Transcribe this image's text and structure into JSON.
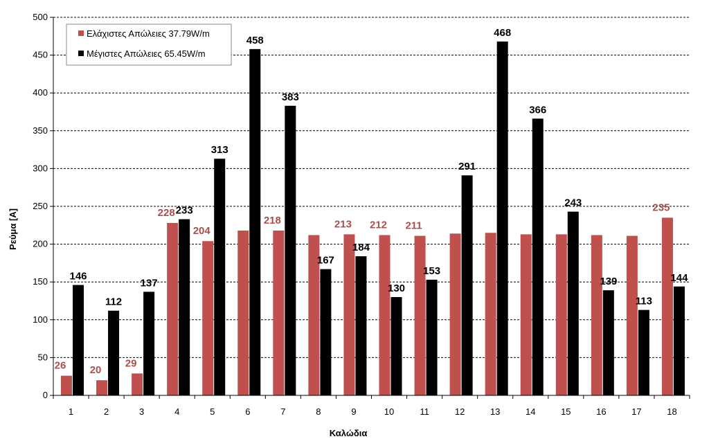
{
  "chart_data": {
    "type": "bar",
    "xlabel": "Καλώδια",
    "ylabel": "Ρεύμα [A]",
    "ylim": [
      0,
      500
    ],
    "yticks": [
      0,
      50,
      100,
      150,
      200,
      250,
      300,
      350,
      400,
      450,
      500
    ],
    "grid": "horizontal-dashed",
    "legend_position": "top-left",
    "categories": [
      "1",
      "2",
      "3",
      "4",
      "5",
      "6",
      "7",
      "8",
      "9",
      "10",
      "11",
      "12",
      "13",
      "14",
      "15",
      "16",
      "17",
      "18"
    ],
    "series": [
      {
        "name": "Ελάχιστες Απώλειες 37.79W/m",
        "color": "#C0504D",
        "label_color": "#A9504D",
        "values": [
          26,
          20,
          29,
          228,
          204,
          218,
          218,
          212,
          213,
          212,
          211,
          214,
          215,
          213,
          213,
          212,
          211,
          235
        ],
        "labels": [
          "26",
          "20",
          "29",
          "228",
          "204",
          "",
          "218",
          "",
          "213",
          "212",
          "211",
          "",
          "",
          "",
          "",
          "",
          "",
          "235"
        ]
      },
      {
        "name": "Μέγιστες Απώλειες 65.45W/m",
        "color": "#000000",
        "label_color": "#000000",
        "values": [
          146,
          112,
          137,
          233,
          313,
          458,
          383,
          167,
          184,
          130,
          153,
          291,
          468,
          366,
          243,
          139,
          113,
          144
        ],
        "labels": [
          "146",
          "112",
          "137",
          "233",
          "313",
          "458",
          "383",
          "167",
          "184",
          "130",
          "153",
          "291",
          "468",
          "366",
          "243",
          "139",
          "113",
          "144"
        ]
      }
    ]
  }
}
